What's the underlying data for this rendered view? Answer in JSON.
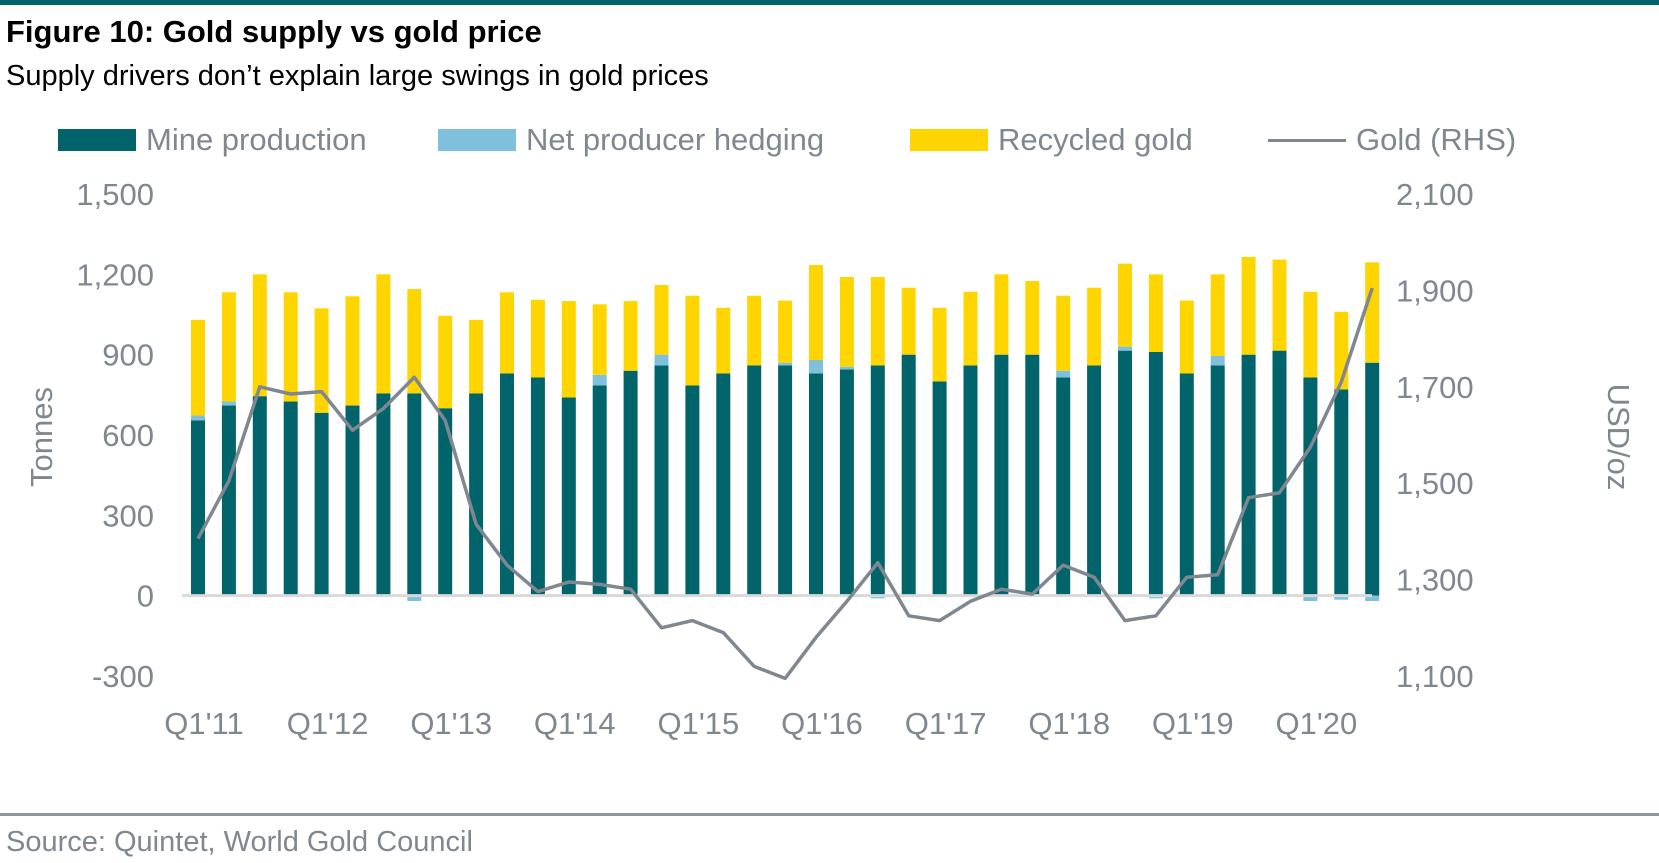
{
  "header": {
    "title": "Figure 10: Gold supply vs gold price",
    "subtitle": "Supply drivers don’t explain large swings in gold prices"
  },
  "footer": {
    "source": "Source: Quintet, World Gold Council"
  },
  "chart_data": {
    "type": "bar",
    "stacked": true,
    "legend_position": "top",
    "grid": false,
    "colors": {
      "mine": "#00646a",
      "hedge": "#7fc1dc",
      "recycled": "#ffd500",
      "gold": "#7f8790",
      "zero": "#d9d9d9"
    },
    "x": [
      "Q1'11",
      "Q2'11",
      "Q3'11",
      "Q4'11",
      "Q1'12",
      "Q2'12",
      "Q3'12",
      "Q4'12",
      "Q1'13",
      "Q2'13",
      "Q3'13",
      "Q4'13",
      "Q1'14",
      "Q2'14",
      "Q3'14",
      "Q4'14",
      "Q1'15",
      "Q2'15",
      "Q3'15",
      "Q4'15",
      "Q1'16",
      "Q2'16",
      "Q3'16",
      "Q4'16",
      "Q1'17",
      "Q2'17",
      "Q3'17",
      "Q4'17",
      "Q1'18",
      "Q2'18",
      "Q3'18",
      "Q4'18",
      "Q1'19",
      "Q2'19",
      "Q3'19",
      "Q4'19",
      "Q1'20",
      "Q2'20",
      "Q3'20"
    ],
    "x_tick_labels": [
      "Q1'11",
      "Q1'12",
      "Q1'13",
      "Q1'14",
      "Q1'15",
      "Q1'16",
      "Q1'17",
      "Q1'18",
      "Q1'19",
      "Q1'20"
    ],
    "series": [
      {
        "key": "mine",
        "name": "Mine production",
        "axis": "left",
        "values": [
          655,
          710,
          745,
          725,
          683,
          710,
          755,
          755,
          700,
          755,
          830,
          815,
          740,
          785,
          840,
          860,
          785,
          830,
          860,
          860,
          830,
          845,
          860,
          900,
          800,
          860,
          900,
          900,
          815,
          860,
          915,
          910,
          830,
          860,
          900,
          915,
          815,
          770,
          870
        ]
      },
      {
        "key": "hedge",
        "name": "Net producer hedging",
        "axis": "left",
        "values": [
          18,
          15,
          0,
          0,
          0,
          0,
          0,
          -20,
          0,
          0,
          0,
          0,
          0,
          40,
          0,
          40,
          0,
          0,
          0,
          10,
          50,
          10,
          -10,
          0,
          0,
          0,
          0,
          0,
          25,
          -5,
          15,
          -10,
          0,
          35,
          0,
          0,
          -20,
          -15,
          -20
        ]
      },
      {
        "key": "recycled",
        "name": "Recycled gold",
        "axis": "left",
        "values": [
          357,
          408,
          455,
          408,
          390,
          408,
          445,
          390,
          345,
          275,
          303,
          290,
          360,
          263,
          260,
          260,
          335,
          245,
          260,
          232,
          355,
          335,
          330,
          250,
          275,
          275,
          300,
          275,
          280,
          290,
          310,
          290,
          272,
          305,
          365,
          340,
          320,
          290,
          375
        ]
      },
      {
        "key": "gold",
        "name": "Gold (RHS)",
        "axis": "right",
        "type": "line",
        "values": [
          1385,
          1505,
          1700,
          1685,
          1690,
          1610,
          1655,
          1720,
          1630,
          1415,
          1330,
          1275,
          1295,
          1290,
          1280,
          1200,
          1215,
          1190,
          1120,
          1095,
          1180,
          1255,
          1335,
          1225,
          1215,
          1255,
          1280,
          1270,
          1330,
          1305,
          1215,
          1225,
          1305,
          1310,
          1470,
          1480,
          1575,
          1710,
          1905
        ]
      }
    ],
    "y_left": {
      "label": "Tonnes",
      "range": [
        -300,
        1500
      ],
      "ticks": [
        "1,500",
        "1,200",
        "900",
        "600",
        "300",
        "0",
        "-300"
      ]
    },
    "y_right": {
      "label": "USD/oz",
      "range": [
        1100,
        2100
      ],
      "ticks": [
        "2,100",
        "1,900",
        "1,700",
        "1,500",
        "1,300",
        "1,100"
      ]
    }
  }
}
